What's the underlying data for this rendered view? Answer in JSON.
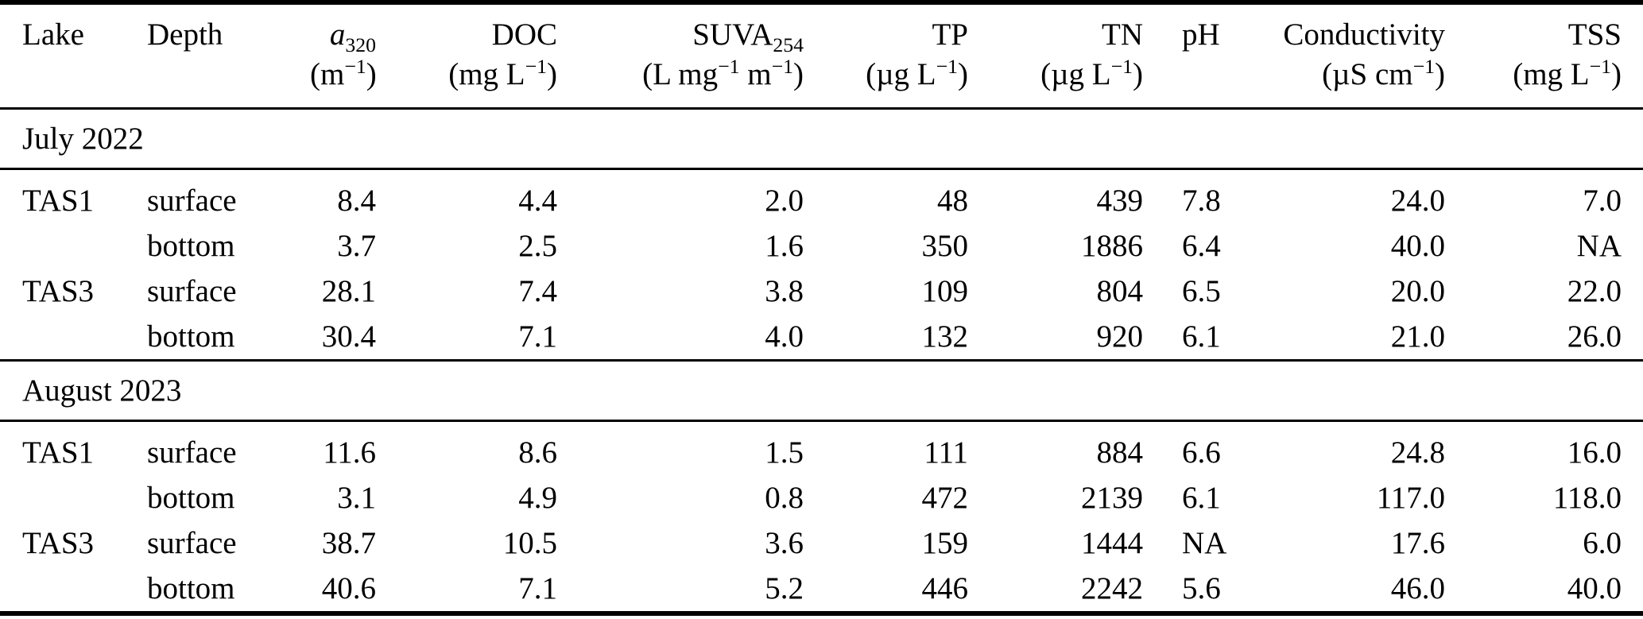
{
  "table": {
    "columns": [
      {
        "key": "lake",
        "label": "Lake",
        "unit": ""
      },
      {
        "key": "depth",
        "label": "Depth",
        "unit": ""
      },
      {
        "key": "a320",
        "label": "*{a}_{320}",
        "unit": "(m^{−1})"
      },
      {
        "key": "doc",
        "label": "DOC",
        "unit": "(mg L^{−1})"
      },
      {
        "key": "suva254",
        "label": "SUVA_{254}",
        "unit": "(L mg^{−1} m^{−1})"
      },
      {
        "key": "tp",
        "label": "TP",
        "unit": "(µg L^{−1})"
      },
      {
        "key": "tn",
        "label": "TN",
        "unit": "(µg L^{−1})"
      },
      {
        "key": "ph",
        "label": "pH",
        "unit": ""
      },
      {
        "key": "conductivity",
        "label": "Conductivity",
        "unit": "(µS cm^{−1})"
      },
      {
        "key": "tss",
        "label": "TSS",
        "unit": "(mg L^{−1})"
      }
    ],
    "sections": [
      {
        "label": "July 2022",
        "rows": [
          {
            "lake": "TAS1",
            "depth": "surface",
            "a320": "8.4",
            "doc": "4.4",
            "suva254": "2.0",
            "tp": "48",
            "tn": "439",
            "ph": "7.8",
            "conductivity": "24.0",
            "tss": "7.0"
          },
          {
            "lake": "",
            "depth": "bottom",
            "a320": "3.7",
            "doc": "2.5",
            "suva254": "1.6",
            "tp": "350",
            "tn": "1886",
            "ph": "6.4",
            "conductivity": "40.0",
            "tss": "NA"
          },
          {
            "lake": "TAS3",
            "depth": "surface",
            "a320": "28.1",
            "doc": "7.4",
            "suva254": "3.8",
            "tp": "109",
            "tn": "804",
            "ph": "6.5",
            "conductivity": "20.0",
            "tss": "22.0"
          },
          {
            "lake": "",
            "depth": "bottom",
            "a320": "30.4",
            "doc": "7.1",
            "suva254": "4.0",
            "tp": "132",
            "tn": "920",
            "ph": "6.1",
            "conductivity": "21.0",
            "tss": "26.0"
          }
        ]
      },
      {
        "label": "August 2023",
        "rows": [
          {
            "lake": "TAS1",
            "depth": "surface",
            "a320": "11.6",
            "doc": "8.6",
            "suva254": "1.5",
            "tp": "111",
            "tn": "884",
            "ph": "6.6",
            "conductivity": "24.8",
            "tss": "16.0"
          },
          {
            "lake": "",
            "depth": "bottom",
            "a320": "3.1",
            "doc": "4.9",
            "suva254": "0.8",
            "tp": "472",
            "tn": "2139",
            "ph": "6.1",
            "conductivity": "117.0",
            "tss": "118.0"
          },
          {
            "lake": "TAS3",
            "depth": "surface",
            "a320": "38.7",
            "doc": "10.5",
            "suva254": "3.6",
            "tp": "159",
            "tn": "1444",
            "ph": "NA",
            "conductivity": "17.6",
            "tss": "6.0"
          },
          {
            "lake": "",
            "depth": "bottom",
            "a320": "40.6",
            "doc": "7.1",
            "suva254": "5.2",
            "tp": "446",
            "tn": "2242",
            "ph": "5.6",
            "conductivity": "46.0",
            "tss": "40.0"
          }
        ]
      }
    ]
  }
}
